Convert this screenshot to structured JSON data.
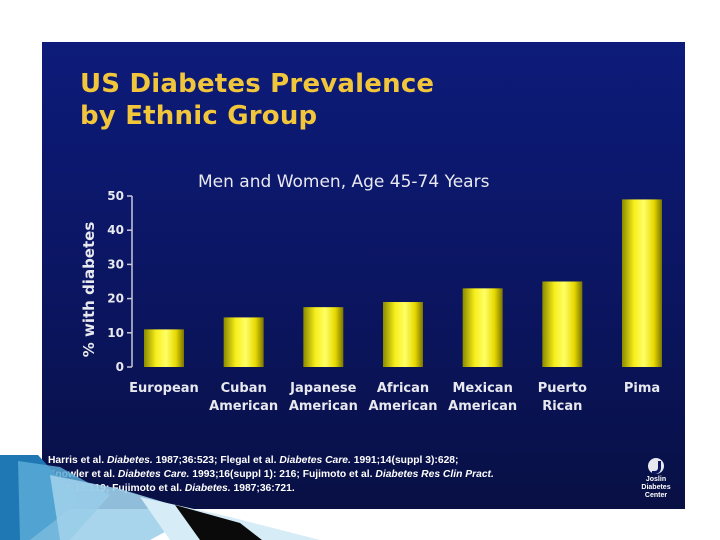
{
  "slide": {
    "title_line1": "US Diabetes Prevalence",
    "title_line2": "by Ethnic Group",
    "subtitle": "Men and Women, Age 45-74 Years"
  },
  "chart_data": {
    "type": "bar",
    "title": "Men and Women, Age 45-74 Years",
    "xlabel": "",
    "ylabel": "% with diabetes",
    "ylim": [
      0,
      50
    ],
    "yticks": [
      0,
      10,
      20,
      30,
      40,
      50
    ],
    "grid": false,
    "categories": [
      {
        "line1": "European",
        "line2": ""
      },
      {
        "line1": "Cuban",
        "line2": "American"
      },
      {
        "line1": "Japanese",
        "line2": "American"
      },
      {
        "line1": "African",
        "line2": "American"
      },
      {
        "line1": "Mexican",
        "line2": "American"
      },
      {
        "line1": "Puerto",
        "line2": "Rican"
      },
      {
        "line1": "Pima",
        "line2": ""
      }
    ],
    "values": [
      11,
      14.5,
      17.5,
      19,
      23,
      25,
      49
    ],
    "bar_color": "#e8e000"
  },
  "references": {
    "r1_author": "Harris et al.",
    "r1_journal": "Diabetes.",
    "r1_cite": "1987;36:523;",
    "r2_author": "Flegal et al.",
    "r2_journal": "Diabetes Care.",
    "r2_cite": "1991;14(suppl 3):628;",
    "r3_author": "Knowler et al.",
    "r3_journal": "Diabetes Care.",
    "r3_cite": "1993;16(suppl 1): 216;",
    "r4_author": "Fujimoto et al.",
    "r4_journal": "Diabetes Res Clin Pract.",
    "r4_cite": "1991;13:119;",
    "r5_author": "Fujimoto et al.",
    "r5_journal": "Diabetes.",
    "r5_cite": "1987;36:721."
  },
  "logo": {
    "line1": "Joslin",
    "line2": "Diabetes",
    "line3": "Center"
  }
}
